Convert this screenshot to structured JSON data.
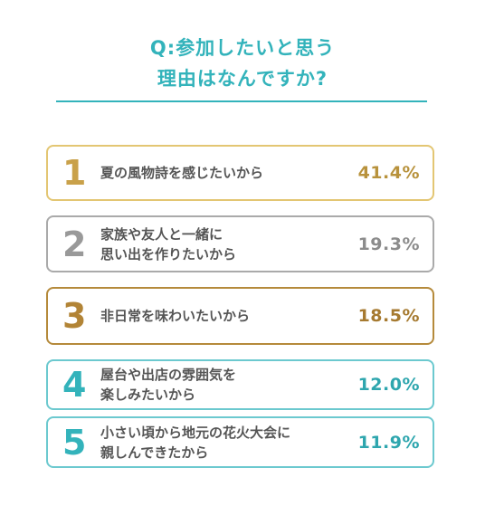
{
  "title": {
    "line1": "Q:参加したいと思う",
    "line2": "理由はなんですか?"
  },
  "colors": {
    "accent": "#33b3bb",
    "gold": "#c9a14a",
    "gray": "#999999"
  },
  "chart_data": {
    "type": "table",
    "rows": [
      {
        "rank": "1",
        "label_lines": [
          "夏の風物詩を感じたいから"
        ],
        "value": 41.4,
        "value_label": "41.4%",
        "tone": "gold"
      },
      {
        "rank": "2",
        "label_lines": [
          "家族や友人と一緒に",
          "思い出を作りたいから"
        ],
        "value": 19.3,
        "value_label": "19.3%",
        "tone": "gray"
      },
      {
        "rank": "3",
        "label_lines": [
          "非日常を味わいたいから"
        ],
        "value": 18.5,
        "value_label": "18.5%",
        "tone": "bronze"
      },
      {
        "rank": "4",
        "label_lines": [
          "屋台や出店の雰囲気を",
          "楽しみたいから"
        ],
        "value": 12.0,
        "value_label": "12.0%",
        "tone": "teal"
      },
      {
        "rank": "5",
        "label_lines": [
          "小さい頃から地元の花火大会に",
          "親しんできたから"
        ],
        "value": 11.9,
        "value_label": "11.9%",
        "tone": "teal"
      }
    ]
  }
}
